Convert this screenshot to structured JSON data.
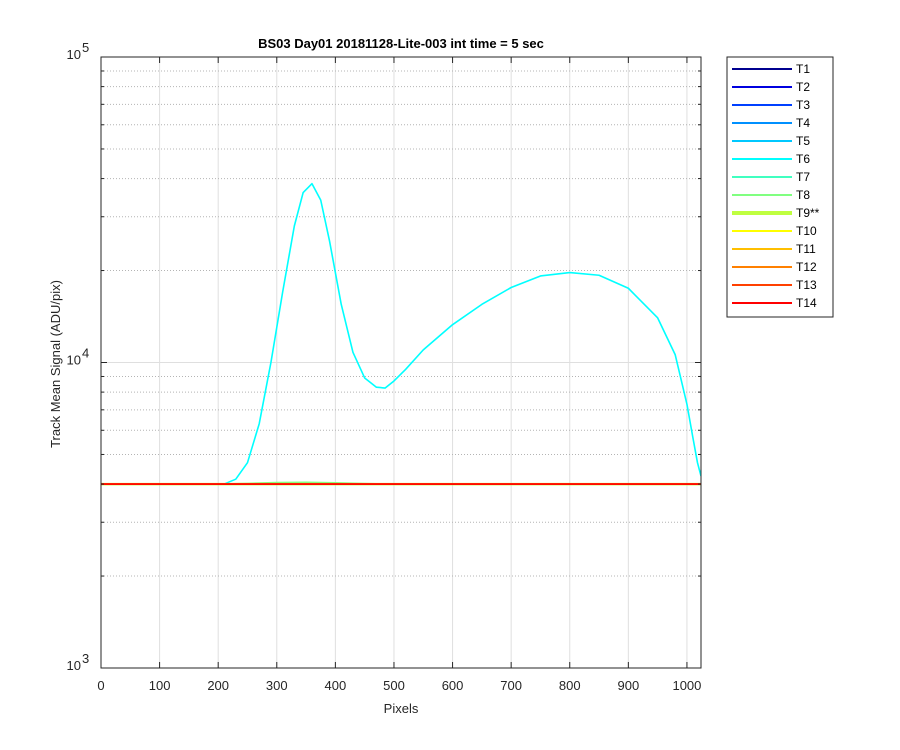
{
  "chart_data": {
    "type": "line",
    "title": "BS03 Day01 20181128-Lite-003 int time = 5 sec",
    "xlabel": "Pixels",
    "ylabel": "Track Mean Signal (ADU/pix)",
    "x_scale": "linear",
    "y_scale": "log",
    "xlim": [
      0,
      1024
    ],
    "ylim": [
      1000,
      100000
    ],
    "xticks": [
      "0",
      "100",
      "200",
      "300",
      "400",
      "500",
      "600",
      "700",
      "800",
      "900",
      "1000"
    ],
    "yticks": [
      {
        "base": "10",
        "exp": "3"
      },
      {
        "base": "10",
        "exp": "4"
      },
      {
        "base": "10",
        "exp": "5"
      }
    ],
    "grid": true,
    "legend_position": "outside-right",
    "series": [
      {
        "name": "T1",
        "color": "#00008F",
        "x": [
          0,
          1024
        ],
        "y": [
          4000,
          4000
        ]
      },
      {
        "name": "T2",
        "color": "#0000DF",
        "x": [
          0,
          1024
        ],
        "y": [
          4000,
          4000
        ]
      },
      {
        "name": "T3",
        "color": "#0040FF",
        "x": [
          0,
          1024
        ],
        "y": [
          4000,
          4000
        ]
      },
      {
        "name": "T4",
        "color": "#0090FF",
        "x": [
          0,
          1024
        ],
        "y": [
          4000,
          4000
        ]
      },
      {
        "name": "T5",
        "color": "#00C8FF",
        "x": [
          0,
          1024
        ],
        "y": [
          4000,
          4000
        ]
      },
      {
        "name": "T6",
        "color": "#00FFFF",
        "x": [
          0,
          210,
          230,
          250,
          270,
          290,
          310,
          330,
          345,
          360,
          375,
          390,
          410,
          430,
          450,
          470,
          485,
          500,
          520,
          550,
          600,
          650,
          700,
          750,
          800,
          850,
          900,
          950,
          980,
          1000,
          1010,
          1018,
          1024
        ],
        "y": [
          4000,
          4000,
          4150,
          4700,
          6300,
          10000,
          17000,
          28000,
          36000,
          38500,
          34000,
          25000,
          15500,
          10800,
          8900,
          8300,
          8250,
          8700,
          9500,
          11000,
          13300,
          15500,
          17600,
          19200,
          19700,
          19300,
          17500,
          14000,
          10600,
          7300,
          5700,
          4700,
          4250
        ]
      },
      {
        "name": "T7",
        "color": "#40FFC0",
        "x": [
          0,
          1024
        ],
        "y": [
          4000,
          4000
        ]
      },
      {
        "name": "T8",
        "color": "#80FF80",
        "x": [
          0,
          200,
          250,
          300,
          350,
          400,
          450,
          500,
          1024
        ],
        "y": [
          4000,
          4000,
          4020,
          4045,
          4055,
          4040,
          4015,
          4000,
          4000
        ]
      },
      {
        "name": "T9**",
        "color": "#BFFF40",
        "thick": true,
        "x": [
          0,
          1024
        ],
        "y": [
          4000,
          4000
        ]
      },
      {
        "name": "T10",
        "color": "#FFFF00",
        "x": [
          0,
          1024
        ],
        "y": [
          4000,
          4000
        ]
      },
      {
        "name": "T11",
        "color": "#FFBF00",
        "x": [
          0,
          1024
        ],
        "y": [
          4000,
          4000
        ]
      },
      {
        "name": "T12",
        "color": "#FF8000",
        "x": [
          0,
          1024
        ],
        "y": [
          4000,
          4000
        ]
      },
      {
        "name": "T13",
        "color": "#FF4000",
        "x": [
          0,
          1024
        ],
        "y": [
          4000,
          4000
        ]
      },
      {
        "name": "T14",
        "color": "#FF0000",
        "x": [
          0,
          1024
        ],
        "y": [
          4000,
          4000
        ]
      }
    ]
  }
}
